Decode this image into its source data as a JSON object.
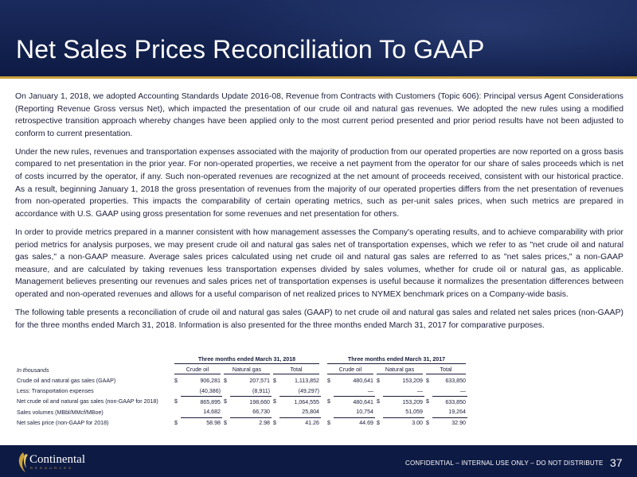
{
  "header": {
    "title": "Net Sales Prices Reconciliation To GAAP"
  },
  "paragraphs": [
    "On January 1, 2018, we adopted Accounting Standards Update 2016-08, Revenue from Contracts with Customers (Topic 606): Principal versus Agent Considerations (Reporting Revenue Gross versus Net), which impacted the presentation of our crude oil and natural gas revenues. We adopted the new rules using a modified retrospective transition approach whereby changes have been applied only to the most current period presented and prior period results have not been adjusted to conform to current presentation.",
    "Under the new rules, revenues and transportation expenses associated with the majority of production from our operated properties are now reported on a gross basis compared to net presentation in the prior year. For non-operated properties, we receive a net payment from the operator for our share of sales proceeds which is net of costs incurred by the operator, if any. Such non-operated revenues are recognized at the net amount of proceeds received, consistent with our historical practice.  As a result, beginning January 1, 2018 the gross presentation of revenues from the majority of our operated properties differs from the net presentation of revenues from non-operated properties. This impacts the comparability of certain operating metrics, such as per-unit sales prices, when such metrics are prepared in accordance with U.S. GAAP using gross presentation for some revenues and net presentation for others.",
    "In order to provide metrics prepared in a manner consistent with how management assesses the Company's operating results, and to achieve comparability with prior period metrics for analysis purposes, we may present crude oil and natural gas sales net of transportation expenses, which we refer to as \"net crude oil and natural gas sales,\" a non-GAAP measure.  Average sales prices calculated using net crude oil and natural gas sales are referred to as \"net sales prices,\" a non-GAAP measure, and are calculated by taking revenues less transportation expenses divided by sales volumes, whether for crude oil or natural gas, as applicable. Management believes presenting our revenues and sales prices net of transportation expenses is useful because it normalizes the presentation differences between operated and non-operated revenues and allows for a useful comparison of net realized prices to NYMEX benchmark prices on a Company-wide basis.",
    "The following table presents a reconciliation of crude oil and natural gas sales (GAAP) to net crude oil and natural gas sales and related net sales prices (non-GAAP) for the three months ended March 31, 2018. Information is also presented for the three months ended March 31, 2017 for comparative purposes."
  ],
  "table": {
    "period_2018": "Three months ended March 31, 2018",
    "period_2017": "Three months ended March 31, 2017",
    "unit_label": "In thousands",
    "columns": [
      "Crude oil",
      "Natural gas",
      "Total",
      "Crude oil",
      "Natural gas",
      "Total"
    ],
    "rows": [
      {
        "label": "Crude oil and natural gas sales (GAAP)",
        "cells": [
          {
            "cur": "$",
            "val": "906,281"
          },
          {
            "cur": "$",
            "val": "207,571"
          },
          {
            "cur": "$",
            "val": "1,113,852"
          },
          {
            "cur": "$",
            "val": "480,641"
          },
          {
            "cur": "$",
            "val": "153,209"
          },
          {
            "cur": "$",
            "val": "633,850"
          }
        ]
      },
      {
        "label": "Less:  Transportation expenses",
        "cells": [
          {
            "cur": "",
            "val": "(40,386)"
          },
          {
            "cur": "",
            "val": "(8,911)"
          },
          {
            "cur": "",
            "val": "(49,297)"
          },
          {
            "cur": "",
            "val": "—"
          },
          {
            "cur": "",
            "val": "—"
          },
          {
            "cur": "",
            "val": "—"
          }
        ]
      },
      {
        "label": "Net crude oil and natural gas sales (non-GAAP for 2018)",
        "cells": [
          {
            "cur": "$",
            "val": "865,895"
          },
          {
            "cur": "$",
            "val": "198,660"
          },
          {
            "cur": "$",
            "val": "1,064,555"
          },
          {
            "cur": "$",
            "val": "480,641"
          },
          {
            "cur": "$",
            "val": "153,209"
          },
          {
            "cur": "$",
            "val": "633,850"
          }
        ]
      },
      {
        "label": "Sales volumes (MBbl/MMcf/MBoe)",
        "cells": [
          {
            "cur": "",
            "val": "14,682"
          },
          {
            "cur": "",
            "val": "66,730"
          },
          {
            "cur": "",
            "val": "25,804"
          },
          {
            "cur": "",
            "val": "10,754"
          },
          {
            "cur": "",
            "val": "51,059"
          },
          {
            "cur": "",
            "val": "19,264"
          }
        ]
      },
      {
        "label": "Net sales price (non-GAAP for 2018)",
        "cells": [
          {
            "cur": "$",
            "val": "58.98"
          },
          {
            "cur": "$",
            "val": "2.98"
          },
          {
            "cur": "$",
            "val": "41.26"
          },
          {
            "cur": "$",
            "val": "44.69"
          },
          {
            "cur": "$",
            "val": "3.00"
          },
          {
            "cur": "$",
            "val": "32.90"
          }
        ]
      }
    ]
  },
  "footer": {
    "logo_name": "Continental",
    "logo_sub": "RESOURCES",
    "confidential": "CONFIDENTIAL – INTERNAL USE ONLY – DO NOT DISTRIBUTE",
    "page_number": "37"
  },
  "colors": {
    "navy": "#0d1a44",
    "gold": "#c9a13b",
    "text": "#1b1b3a"
  }
}
